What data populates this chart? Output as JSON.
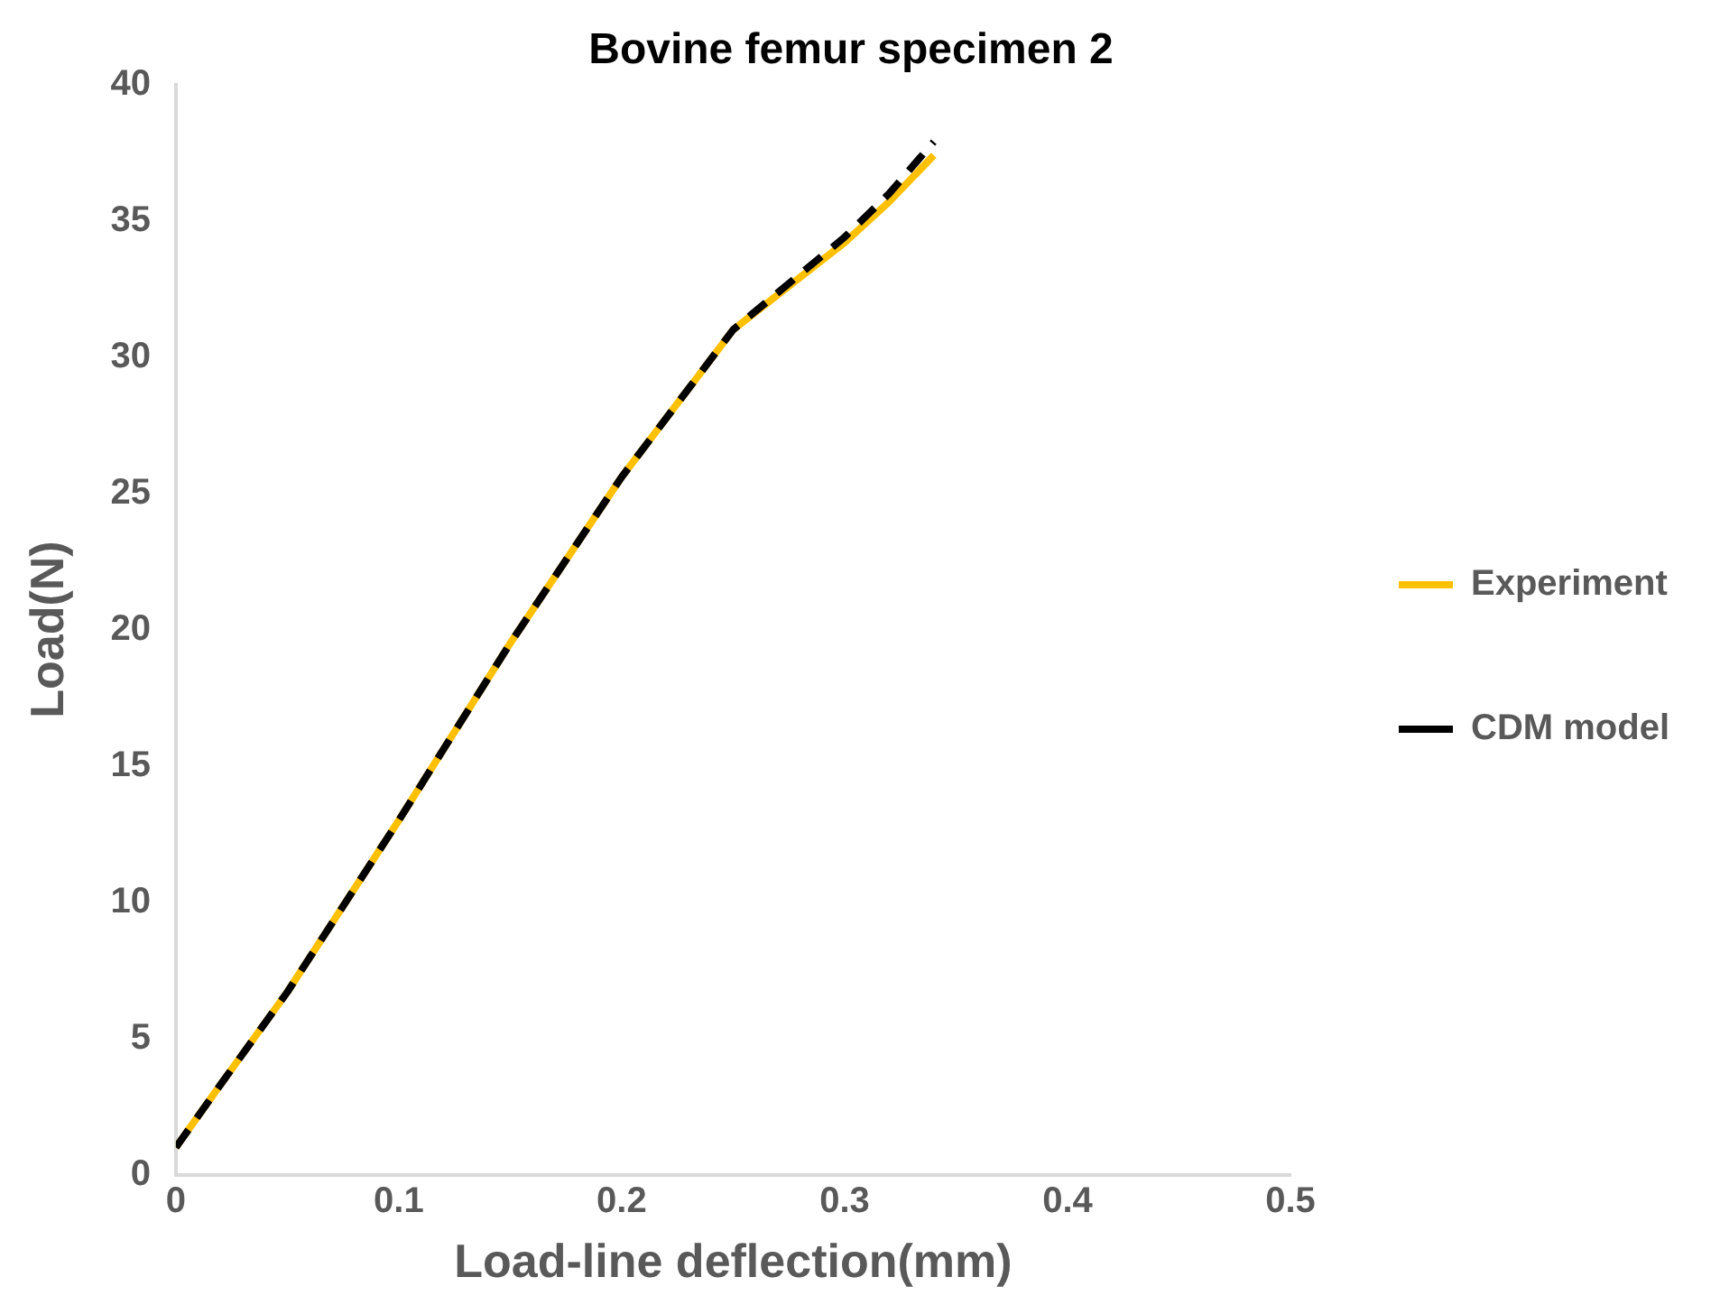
{
  "chart_data": {
    "type": "line",
    "title": "Bovine femur specimen 2",
    "xlabel": "Load-line deflection(mm)",
    "ylabel": "Load(N)",
    "xlim": [
      0,
      0.5
    ],
    "xticks": [
      0,
      0.1,
      0.2,
      0.3,
      0.4,
      0.5
    ],
    "ylim": [
      0,
      40
    ],
    "yticks": [
      0,
      5,
      10,
      15,
      20,
      25,
      30,
      35,
      40
    ],
    "grid": false,
    "legend": "right",
    "marker": "none",
    "series": [
      {
        "name": "Experiment",
        "color": "#ffc000",
        "line_style": "solid",
        "x": [
          0,
          0.02,
          0.05,
          0.1,
          0.15,
          0.2,
          0.25,
          0.3,
          0.32,
          0.34
        ],
        "values": [
          1,
          3.3,
          6.7,
          13,
          19.5,
          25.6,
          31,
          34.2,
          35.7,
          37.4
        ]
      },
      {
        "name": "CDM model",
        "color": "#000000",
        "line_style": "dashed",
        "x": [
          0,
          0.02,
          0.05,
          0.1,
          0.15,
          0.2,
          0.25,
          0.3,
          0.32,
          0.34
        ],
        "values": [
          1,
          3.3,
          6.7,
          13,
          19.5,
          25.6,
          31,
          34.4,
          36,
          37.9
        ]
      }
    ]
  }
}
